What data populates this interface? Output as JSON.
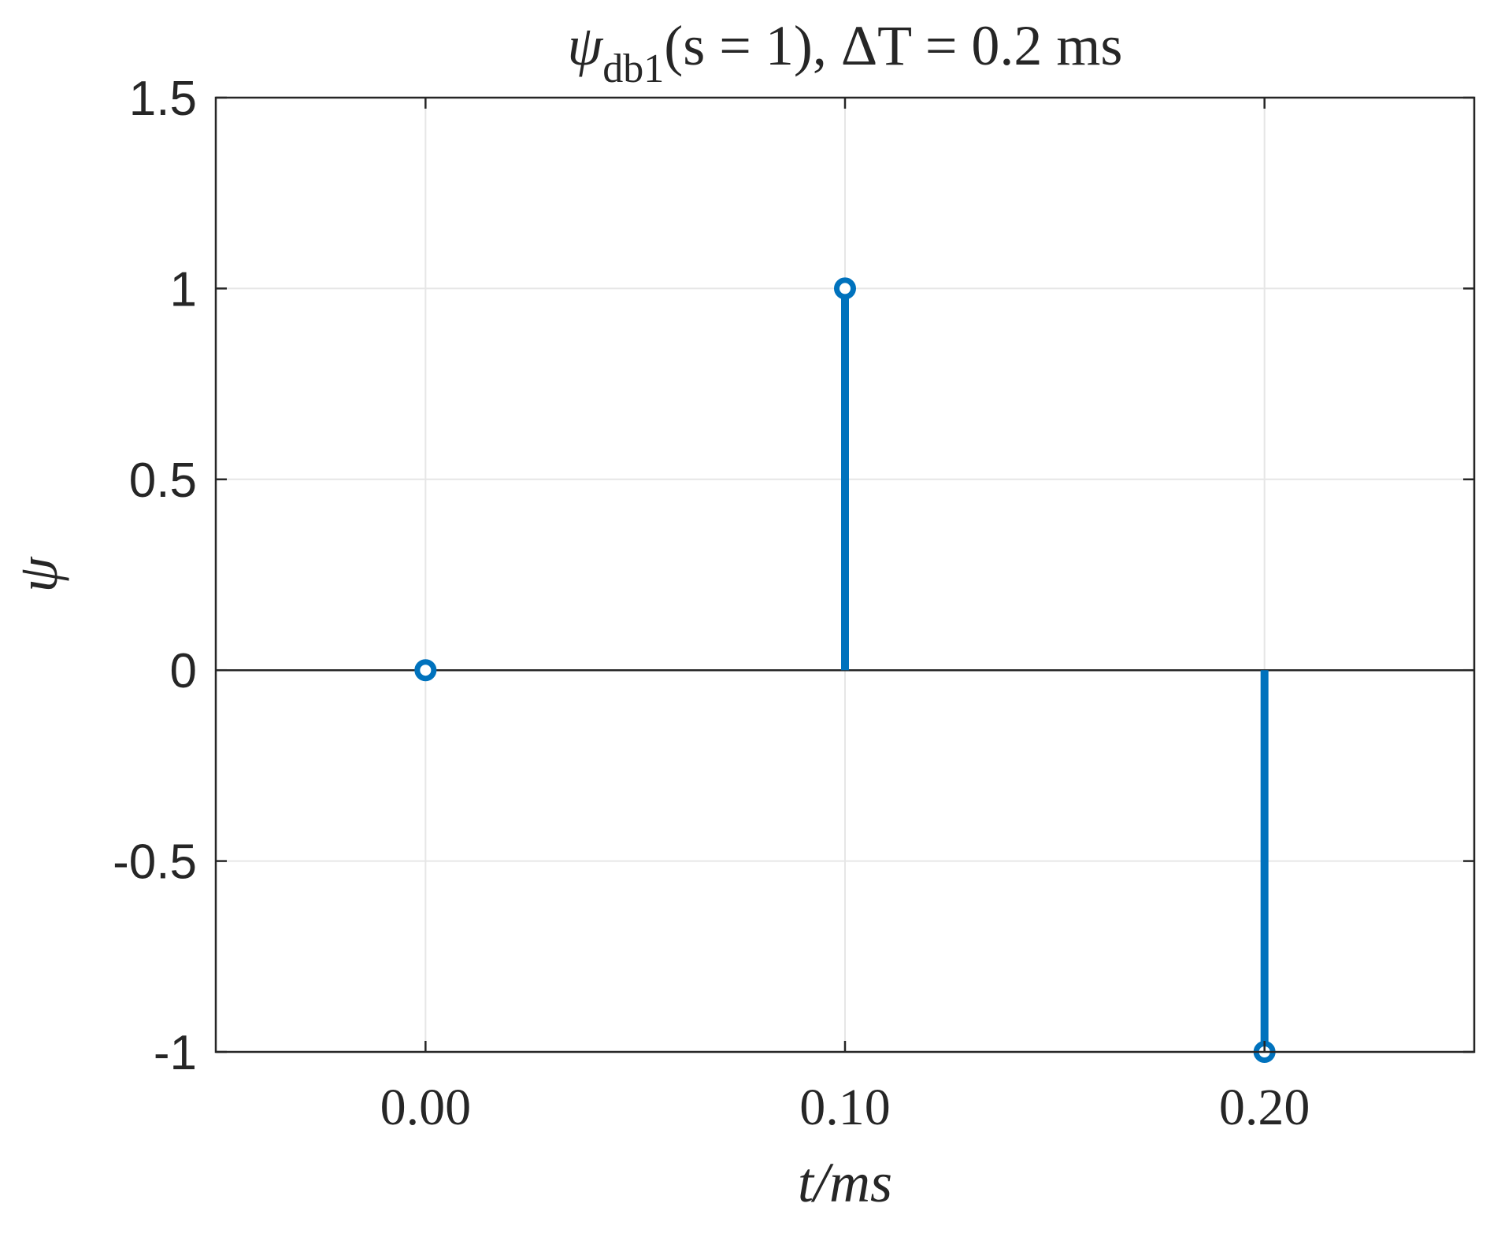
{
  "chart_data": {
    "type": "stem",
    "title": {
      "psi": "ψ",
      "sub": "db1",
      "rest": "(s = 1), ΔT = 0.2 ms"
    },
    "xlabel": "t/ms",
    "ylabel": "ψ",
    "xlim": [
      -0.05,
      0.25
    ],
    "ylim": [
      -1,
      1.5
    ],
    "xticks": [
      0.0,
      0.1,
      0.2
    ],
    "xtick_labels": [
      "0.00",
      "0.10",
      "0.20"
    ],
    "yticks": [
      -1,
      -0.5,
      0,
      0.5,
      1,
      1.5
    ],
    "ytick_labels": [
      "-1",
      "-0.5",
      "0",
      "0.5",
      "1",
      "1.5"
    ],
    "grid": true,
    "baseline": 0,
    "series": [
      {
        "x": [
          0.0,
          0.1,
          0.2
        ],
        "y": [
          0,
          1,
          -1
        ]
      }
    ],
    "colors": {
      "stem": "#0072BD",
      "axes": "#262626",
      "grid": "#e6e6e6"
    }
  }
}
